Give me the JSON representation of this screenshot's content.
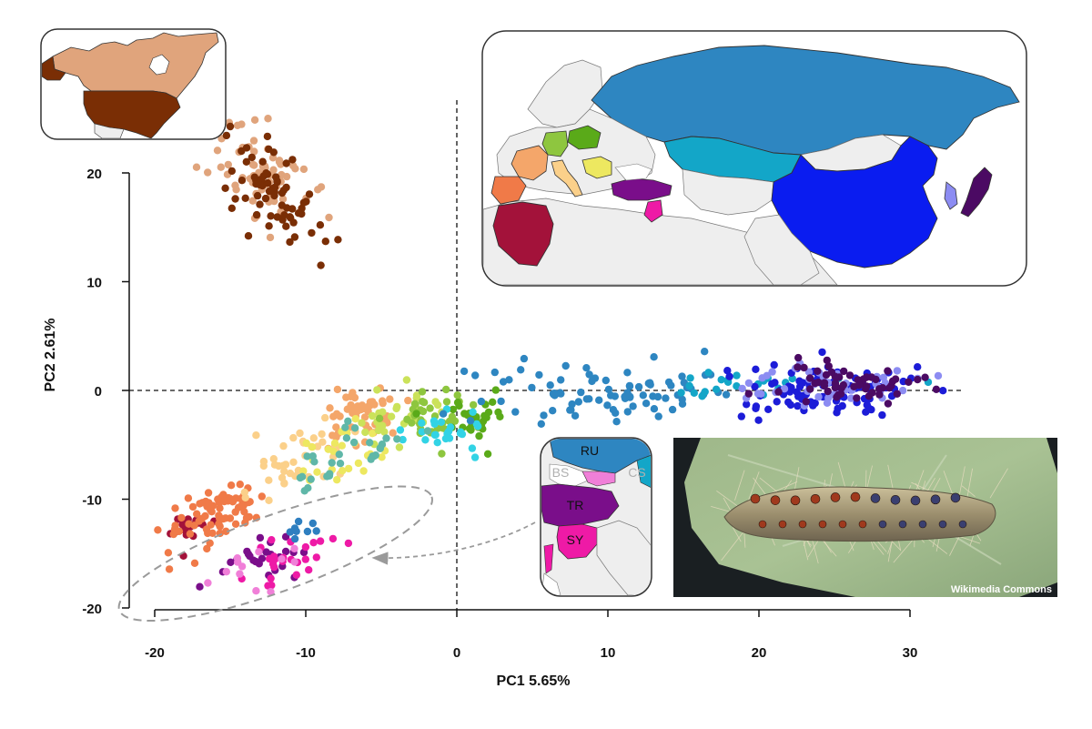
{
  "chart_data": {
    "type": "scatter",
    "title": "",
    "xlabel": "PC1 5.65%",
    "ylabel": "PC2 2.61%",
    "xlim": [
      -20,
      33
    ],
    "ylim": [
      -20,
      25
    ],
    "xticks": [
      "-20",
      "-10",
      "0",
      "10",
      "20",
      "30"
    ],
    "yticks": [
      "-20",
      "-10",
      "0",
      "10",
      "20"
    ],
    "xtick_values": [
      -20,
      -10,
      0,
      10,
      20,
      30
    ],
    "ytick_values": [
      -20,
      -10,
      0,
      10,
      20
    ],
    "reference_lines": {
      "x": 0,
      "y": 0,
      "style": "dashed"
    },
    "clusters": [
      {
        "color": "#e0a47c",
        "center": [
          -13,
          20
        ],
        "spread": [
          1.6,
          2.2
        ],
        "count": 70,
        "tilt": -0.6
      },
      {
        "color": "#7a2e05",
        "center": [
          -12,
          18.5
        ],
        "spread": [
          1.5,
          2.0
        ],
        "count": 70,
        "tilt": -0.7
      },
      {
        "color": "#a3123a",
        "center": [
          -17.5,
          -12.5
        ],
        "spread": [
          1.0,
          0.8
        ],
        "count": 20,
        "tilt": 0.4
      },
      {
        "color": "#f07a48",
        "center": [
          -16,
          -11.5
        ],
        "spread": [
          1.6,
          1.2
        ],
        "count": 75,
        "tilt": 0.5
      },
      {
        "color": "#f4a66a",
        "center": [
          -6.5,
          -2.5
        ],
        "spread": [
          1.2,
          1.4
        ],
        "count": 55,
        "tilt": 0.3
      },
      {
        "color": "#fbd08a",
        "center": [
          -11,
          -6.5
        ],
        "spread": [
          2.0,
          1.5
        ],
        "count": 40,
        "tilt": 0.5
      },
      {
        "color": "#ede860",
        "center": [
          -7.5,
          -6.5
        ],
        "spread": [
          1.5,
          1.5
        ],
        "count": 25,
        "tilt": 0.4
      },
      {
        "color": "#cbe25a",
        "center": [
          -4,
          -2.5
        ],
        "spread": [
          1.3,
          1.3
        ],
        "count": 30,
        "tilt": 0.3
      },
      {
        "color": "#8ec63f",
        "center": [
          -2,
          -2
        ],
        "spread": [
          1.4,
          1.2
        ],
        "count": 35,
        "tilt": 0.2
      },
      {
        "color": "#5aaa19",
        "center": [
          1.5,
          -2.5
        ],
        "spread": [
          1.2,
          1.1
        ],
        "count": 30,
        "tilt": 0.1
      },
      {
        "color": "#32d3e5",
        "center": [
          -1,
          -3.5
        ],
        "spread": [
          1.5,
          0.9
        ],
        "count": 25,
        "tilt": 0.1
      },
      {
        "color": "#5fb7a8",
        "center": [
          -7,
          -6
        ],
        "spread": [
          2.0,
          1.3
        ],
        "count": 30,
        "tilt": 0.4
      },
      {
        "color": "#2e86c1",
        "center": [
          9,
          0
        ],
        "spread": [
          4.0,
          1.4
        ],
        "count": 85,
        "tilt": 0.0
      },
      {
        "color": "#13a6c8",
        "center": [
          20,
          0.8
        ],
        "spread": [
          3.5,
          0.8
        ],
        "count": 25,
        "tilt": 0.0
      },
      {
        "color": "#1c1cd8",
        "center": [
          24,
          0
        ],
        "spread": [
          3.5,
          1.2
        ],
        "count": 95,
        "tilt": 0.0
      },
      {
        "color": "#8c8cf2",
        "center": [
          24.5,
          0.5
        ],
        "spread": [
          2.5,
          1.0
        ],
        "count": 45,
        "tilt": 0.0
      },
      {
        "color": "#4b0a63",
        "center": [
          26,
          0.5
        ],
        "spread": [
          2.5,
          1.0
        ],
        "count": 55,
        "tilt": 0.0
      },
      {
        "color": "#7a0e8a",
        "center": [
          -13,
          -15.5
        ],
        "spread": [
          1.5,
          1.2
        ],
        "count": 25,
        "tilt": 0.3
      },
      {
        "color": "#ee1aa6",
        "center": [
          -11.5,
          -15.5
        ],
        "spread": [
          1.5,
          1.2
        ],
        "count": 25,
        "tilt": 0.3
      },
      {
        "color": "#f07fd8",
        "center": [
          -13,
          -16.5
        ],
        "spread": [
          1.5,
          1.3
        ],
        "count": 12,
        "tilt": 0.3
      },
      {
        "color": "#2f7fc0",
        "center": [
          -10,
          -12.5
        ],
        "spread": [
          0.8,
          0.8
        ],
        "count": 8,
        "tilt": 0.0
      }
    ],
    "outlier_points": [
      [
        31,
        1.2
      ],
      [
        30.5,
        1.0
      ],
      [
        -12.5,
        25
      ],
      [
        -9,
        11.5
      ]
    ],
    "annotation_ellipse": {
      "center": [
        -12,
        -15
      ],
      "rx_units": 11,
      "ry_units": 3.5,
      "angle_deg": -20
    },
    "arrow": {
      "from_label": "inset-europe-detail",
      "to": [
        -5.5,
        -15.5
      ]
    }
  },
  "insets": {
    "europe_detail_labels": {
      "ru": "RU",
      "bs": "BS",
      "cs": "CS",
      "tr": "TR",
      "sy": "SY"
    },
    "photo_credit": "Wikimedia Commons",
    "colors": {
      "north_america_canada": "#e0a47c",
      "north_america_usa": "#7a2e05",
      "russia": "#2e86c1",
      "kazakhstan": "#13a6c8",
      "china": "#0a1cf0",
      "japan": "#4b0a63",
      "korea": "#8c8cf2",
      "turkey": "#7a0e8a",
      "syria": "#ee1aa6",
      "algeria": "#a3123a",
      "spain": "#f07a48",
      "france": "#f4a66a",
      "italy": "#fbd08a",
      "germany": "#8ec63f",
      "poland": "#5aaa19",
      "balkans": "#ede860",
      "land": "#eeeeee",
      "sea": "#ffffff"
    }
  }
}
